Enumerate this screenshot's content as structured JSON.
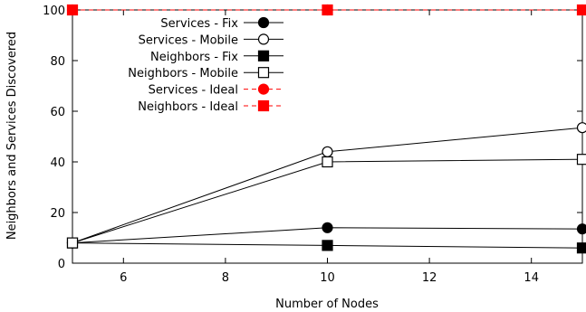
{
  "chart_data": {
    "type": "line",
    "xlabel": "Number of Nodes",
    "ylabel": "Neighbors and Services Discovered",
    "xlim": [
      5,
      15
    ],
    "ylim": [
      0,
      100
    ],
    "x_ticks": [
      6,
      8,
      10,
      12,
      14
    ],
    "y_ticks": [
      0,
      20,
      40,
      60,
      80,
      100
    ],
    "grid": false,
    "legend_position": "top-center",
    "x": [
      5,
      10,
      15
    ],
    "series": [
      {
        "name": "Services - Fix",
        "values": [
          8,
          14,
          13.5
        ],
        "marker": "circle-filled",
        "line": "solid",
        "color": "#000000"
      },
      {
        "name": "Services - Mobile",
        "values": [
          8,
          44,
          53.5
        ],
        "marker": "circle-open",
        "line": "solid",
        "color": "#000000"
      },
      {
        "name": "Neighbors - Fix",
        "values": [
          8,
          7,
          6
        ],
        "marker": "square-filled",
        "line": "solid",
        "color": "#000000"
      },
      {
        "name": "Neighbors - Mobile",
        "values": [
          8,
          40,
          41
        ],
        "marker": "square-open",
        "line": "solid",
        "color": "#000000"
      },
      {
        "name": "Services - Ideal",
        "values": [
          100,
          100,
          100
        ],
        "marker": "circle-filled",
        "line": "dashed",
        "color": "#ff0000"
      },
      {
        "name": "Neighbors - Ideal",
        "values": [
          100,
          100,
          100
        ],
        "marker": "square-filled",
        "line": "dashed",
        "color": "#ff0000"
      }
    ]
  }
}
